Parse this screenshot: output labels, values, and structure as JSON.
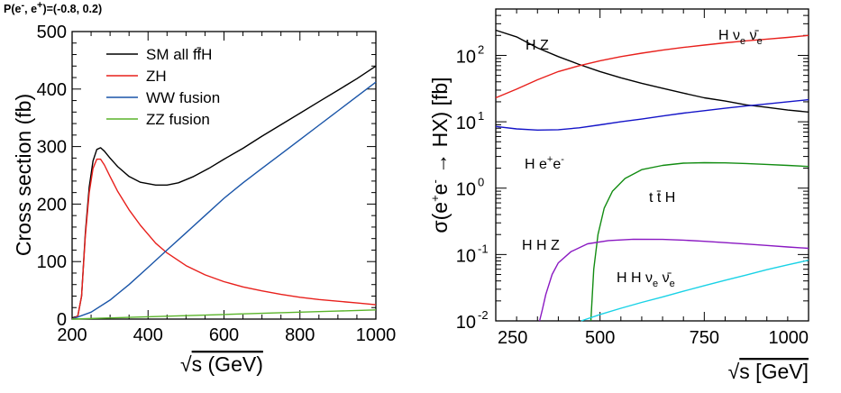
{
  "header": {
    "polarization_lead": "P(e",
    "polarization_sup1": "-",
    "polarization_mid": ", e",
    "polarization_sup2": "+",
    "polarization_tail": ")=(-0.8, 0.2)"
  },
  "chart_data": [
    {
      "type": "line",
      "xlabel_radical": "√",
      "xlabel": "s (GeV)",
      "ylabel": "Cross section (fb)",
      "xlim": [
        200,
        1000
      ],
      "ylim": [
        0,
        500
      ],
      "xticks": [
        "200",
        "400",
        "600",
        "800",
        "1000"
      ],
      "yticks": [
        "0",
        "100",
        "200",
        "300",
        "400",
        "500"
      ],
      "grid": false,
      "legend_position": "top-left",
      "series": [
        {
          "name": "SM all ff̄H",
          "color": "#000000",
          "x": [
            200,
            215,
            225,
            235,
            245,
            255,
            265,
            275,
            285,
            300,
            320,
            350,
            380,
            420,
            450,
            480,
            520,
            560,
            600,
            650,
            700,
            750,
            800,
            850,
            900,
            950,
            1000
          ],
          "y": [
            2,
            5,
            40,
            150,
            230,
            275,
            295,
            298,
            292,
            280,
            265,
            248,
            238,
            233,
            233,
            237,
            248,
            262,
            278,
            297,
            318,
            338,
            358,
            378,
            398,
            418,
            440
          ]
        },
        {
          "name": "ZH",
          "color": "#e8201c",
          "x": [
            200,
            215,
            225,
            235,
            245,
            255,
            265,
            275,
            285,
            300,
            320,
            350,
            380,
            420,
            450,
            500,
            550,
            600,
            650,
            700,
            750,
            800,
            850,
            900,
            950,
            1000
          ],
          "y": [
            0,
            5,
            40,
            145,
            220,
            262,
            278,
            278,
            268,
            248,
            222,
            190,
            163,
            132,
            115,
            93,
            77,
            65,
            56,
            49,
            43,
            38,
            34,
            31,
            28,
            25
          ]
        },
        {
          "name": "WW fusion",
          "color": "#1a55a8",
          "x": [
            200,
            250,
            300,
            350,
            400,
            450,
            500,
            550,
            600,
            650,
            700,
            750,
            800,
            850,
            900,
            950,
            1000
          ],
          "y": [
            0,
            12,
            33,
            60,
            90,
            120,
            150,
            180,
            210,
            237,
            262,
            287,
            312,
            337,
            362,
            387,
            412
          ]
        },
        {
          "name": "ZZ fusion",
          "color": "#5ab42a",
          "x": [
            200,
            300,
            400,
            500,
            600,
            700,
            800,
            900,
            1000
          ],
          "y": [
            0,
            2,
            4,
            6,
            8,
            10,
            12,
            14,
            16
          ]
        }
      ]
    },
    {
      "type": "line",
      "log_y": true,
      "xlabel_radical": "√",
      "xlabel": "s [GeV]",
      "ylabel": "σ(e+e- → HX) [fb]",
      "xlim": [
        250,
        1000
      ],
      "ylim": [
        0.01,
        500
      ],
      "xticks": [
        "250",
        "500",
        "750",
        "1000"
      ],
      "yticks": [
        "10-2",
        "10-1",
        "100",
        "101",
        "102"
      ],
      "grid": false,
      "series": [
        {
          "name": "H Z",
          "color": "#000000",
          "x": [
            250,
            300,
            350,
            400,
            450,
            500,
            550,
            600,
            650,
            700,
            750,
            800,
            850,
            900,
            950,
            1000
          ],
          "y": [
            240,
            190,
            130,
            96,
            73,
            57,
            46,
            38,
            32,
            27,
            23,
            20.5,
            18,
            16.5,
            15,
            14
          ]
        },
        {
          "name": "H νe ν̄e",
          "color": "#e8201c",
          "x": [
            250,
            300,
            350,
            400,
            450,
            500,
            550,
            600,
            650,
            700,
            750,
            800,
            850,
            900,
            950,
            1000
          ],
          "y": [
            23,
            31,
            43,
            57,
            70,
            83,
            96,
            108,
            120,
            132,
            143,
            155,
            166,
            176,
            187,
            200
          ]
        },
        {
          "name": "H e+e-",
          "color": "#1414c8",
          "x": [
            250,
            300,
            350,
            400,
            450,
            500,
            550,
            600,
            650,
            700,
            750,
            800,
            850,
            900,
            950,
            1000
          ],
          "y": [
            8.5,
            7.8,
            7.5,
            7.6,
            8.1,
            9.0,
            10,
            11,
            12.2,
            13.5,
            14.7,
            16,
            17.3,
            18.6,
            20,
            21.5
          ]
        },
        {
          "name": "t t̄ H",
          "color": "#128c12",
          "x": [
            478,
            485,
            495,
            510,
            530,
            560,
            600,
            650,
            700,
            750,
            800,
            850,
            900,
            950,
            1000
          ],
          "y": [
            0.01,
            0.06,
            0.2,
            0.5,
            0.9,
            1.4,
            1.9,
            2.2,
            2.38,
            2.42,
            2.4,
            2.35,
            2.28,
            2.2,
            2.12
          ]
        },
        {
          "name": "H H Z",
          "color": "#8a19c2",
          "x": [
            355,
            362,
            370,
            385,
            400,
            430,
            470,
            520,
            580,
            650,
            700,
            750,
            800,
            850,
            900,
            950,
            1000
          ],
          "y": [
            0.01,
            0.015,
            0.025,
            0.05,
            0.075,
            0.11,
            0.145,
            0.162,
            0.17,
            0.169,
            0.165,
            0.158,
            0.151,
            0.144,
            0.137,
            0.13,
            0.124
          ]
        },
        {
          "name": "H H νe ν̄e",
          "color": "#19d2e6",
          "x": [
            455,
            500,
            550,
            600,
            650,
            700,
            750,
            800,
            850,
            900,
            950,
            1000
          ],
          "y": [
            0.01,
            0.0125,
            0.0155,
            0.019,
            0.023,
            0.028,
            0.034,
            0.041,
            0.049,
            0.059,
            0.07,
            0.082
          ]
        }
      ]
    }
  ]
}
